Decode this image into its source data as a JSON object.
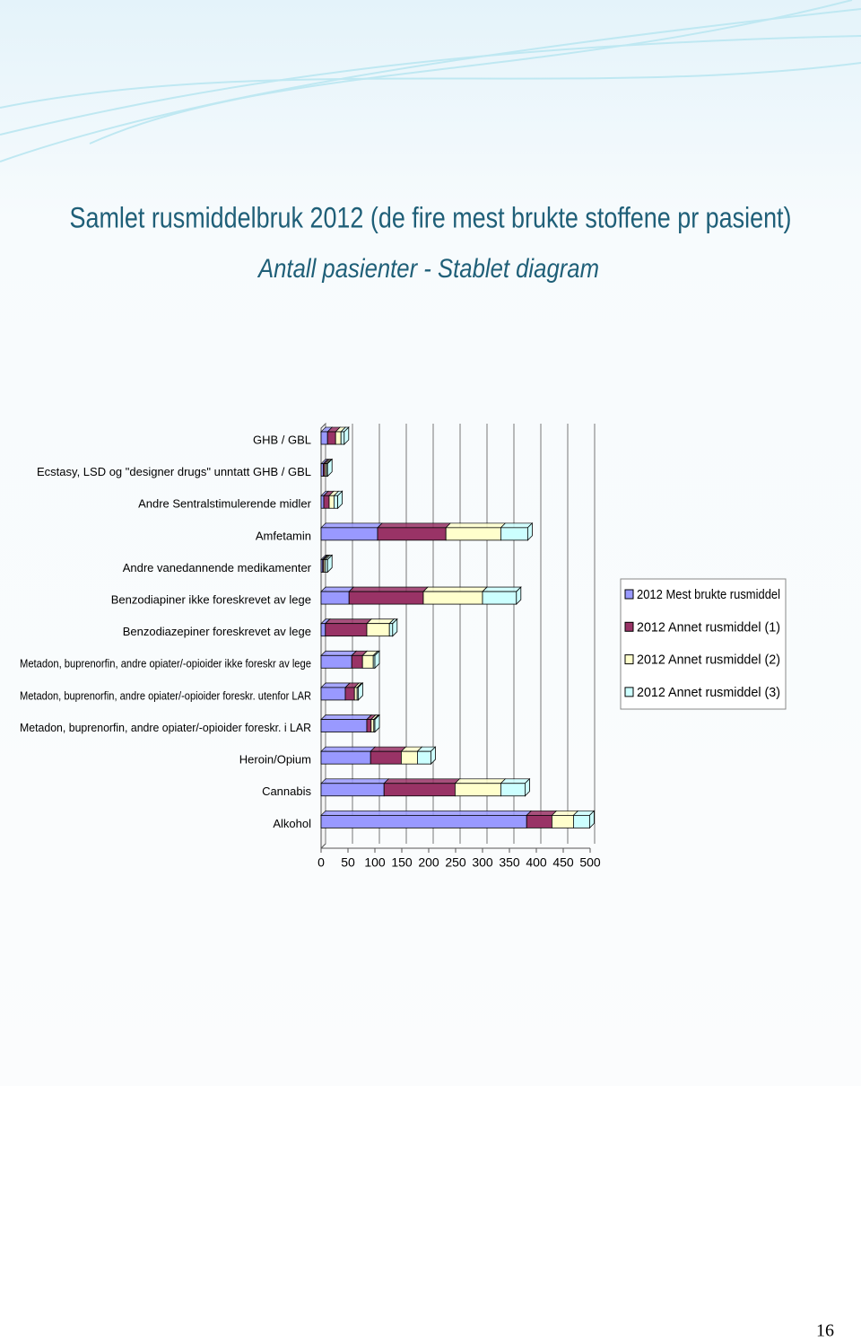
{
  "chart_data": {
    "type": "bar",
    "orientation": "horizontal",
    "stacked": true,
    "title": "Samlet rusmiddelbruk 2012 (de fire mest brukte stoffene pr pasient)",
    "subtitle": "Antall pasienter - Stablet diagram",
    "categories": [
      "GHB / GBL",
      "Ecstasy, LSD og \"designer drugs\" unntatt GHB / GBL",
      "Andre Sentralstimulerende midler",
      "Amfetamin",
      "Andre vanedannende medikamenter",
      "Benzodiapiner ikke foreskrevet av lege",
      "Benzodiazepiner foreskrevet av lege",
      "Metadon, buprenorfin, andre opiater/-opioider ikke foreskr av lege",
      "Metadon, buprenorfin, andre opiater/-opioider foreskr. utenfor LAR",
      "Metadon, buprenorfin, andre opiater/-opioider foreskr. i LAR",
      "Heroin/Opium",
      "Cannabis",
      "Alkohol"
    ],
    "series": [
      {
        "name": "2012 Mest brukte rusmiddel",
        "color": "#9999ff",
        "values": [
          12,
          4,
          5,
          105,
          3,
          52,
          8,
          57,
          45,
          85,
          92,
          117,
          382
        ]
      },
      {
        "name": "2012 Annet rusmiddel (1)",
        "color": "#993366",
        "values": [
          15,
          3,
          10,
          127,
          2,
          138,
          77,
          20,
          17,
          8,
          57,
          132,
          47
        ]
      },
      {
        "name": "2012 Annet rusmiddel (2)",
        "color": "#ffffcc",
        "values": [
          10,
          3,
          9,
          102,
          3,
          110,
          42,
          20,
          5,
          5,
          30,
          85,
          40
        ]
      },
      {
        "name": "2012 Annet rusmiddel (3)",
        "color": "#ccffff",
        "values": [
          6,
          2,
          7,
          50,
          4,
          63,
          6,
          3,
          2,
          2,
          25,
          45,
          30
        ]
      }
    ],
    "xlim": [
      0,
      500
    ],
    "xticks": [
      0,
      50,
      100,
      150,
      200,
      250,
      300,
      350,
      400,
      450,
      500
    ],
    "grid": true,
    "legend": "right"
  },
  "page_number": "16"
}
